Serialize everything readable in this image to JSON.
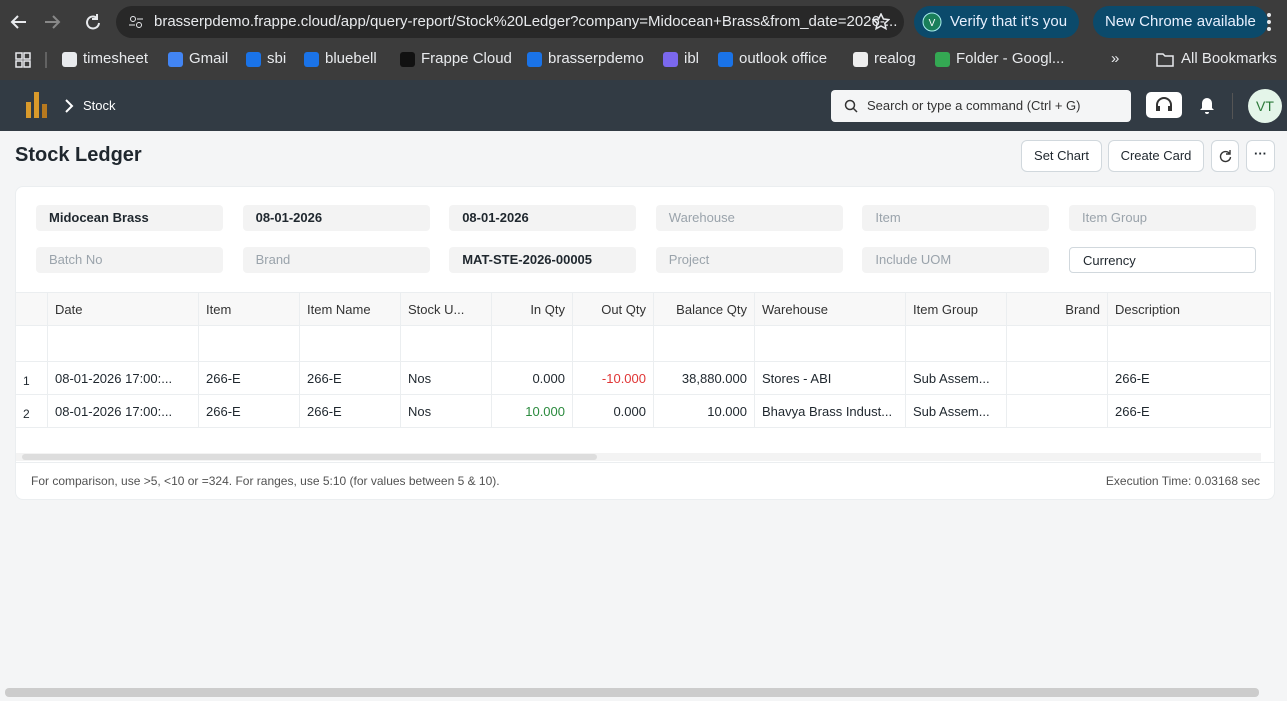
{
  "browser": {
    "url": "brasserpdemo.frappe.cloud/app/query-report/Stock%20Ledger?company=Midocean+Brass&from_date=2026-...",
    "profile_prompt": "Verify that it's you",
    "update": "New Chrome available",
    "bookmarks": [
      "timesheet",
      "Gmail",
      "sbi",
      "bluebell",
      "Frappe Cloud",
      "brasserpdemo",
      "ibl",
      "outlook office",
      "realog",
      "Folder - Googl..."
    ],
    "overflow": "»",
    "all_bookmarks": "All Bookmarks"
  },
  "navbar": {
    "breadcrumb": "Stock",
    "search": "Search or type a command (Ctrl + G)",
    "avatar": "VT"
  },
  "page": {
    "title": "Stock Ledger",
    "buttons": [
      "Set Chart",
      "Create Card"
    ],
    "more": "···"
  },
  "filters": [
    {
      "text": "Midocean Brass",
      "filled": true
    },
    {
      "text": "08-01-2026",
      "filled": true
    },
    {
      "text": "08-01-2026",
      "filled": true
    },
    {
      "text": "Warehouse",
      "filled": false
    },
    {
      "text": "Item",
      "filled": false
    },
    {
      "text": "Item Group",
      "filled": false
    },
    {
      "text": "Batch No",
      "filled": false
    },
    {
      "text": "Brand",
      "filled": false
    },
    {
      "text": "MAT-STE-2026-00005",
      "filled": true
    },
    {
      "text": "Project",
      "filled": false
    },
    {
      "text": "Include UOM",
      "filled": false
    },
    {
      "text": "Currency",
      "filled": true,
      "select": true
    }
  ],
  "table": {
    "columns": [
      {
        "label": "Date"
      },
      {
        "label": "Item"
      },
      {
        "label": "Item Name"
      },
      {
        "label": "Stock U..."
      },
      {
        "label": "In Qty",
        "align": "right",
        "sign_colors": true
      },
      {
        "label": "Out Qty",
        "align": "right",
        "sign_colors": true
      },
      {
        "label": "Balance Qty",
        "align": "right"
      },
      {
        "label": "Warehouse"
      },
      {
        "label": "Item Group"
      },
      {
        "label": "Brand",
        "align": "right"
      },
      {
        "label": "Description"
      }
    ],
    "row_numbers": [
      1,
      2
    ],
    "rows": [
      [
        "08-01-2026 17:00:...",
        "266-E",
        "266-E",
        "Nos",
        "0.000",
        "-10.000",
        "38,880.000",
        "Stores - ABI",
        "Sub Assem...",
        null,
        "266-E"
      ],
      [
        "08-01-2026 17:00:...",
        "266-E",
        "266-E",
        "Nos",
        "10.000",
        "0.000",
        "10.000",
        "Bhavya Brass Indust...",
        "Sub Assem...",
        null,
        "266-E"
      ]
    ]
  },
  "footer": {
    "hint": "For comparison, use >5, <10 or =324. For ranges, use 5:10 (for values between 5 & 10).",
    "execution_time": "Execution Time: 0.03168 sec"
  }
}
